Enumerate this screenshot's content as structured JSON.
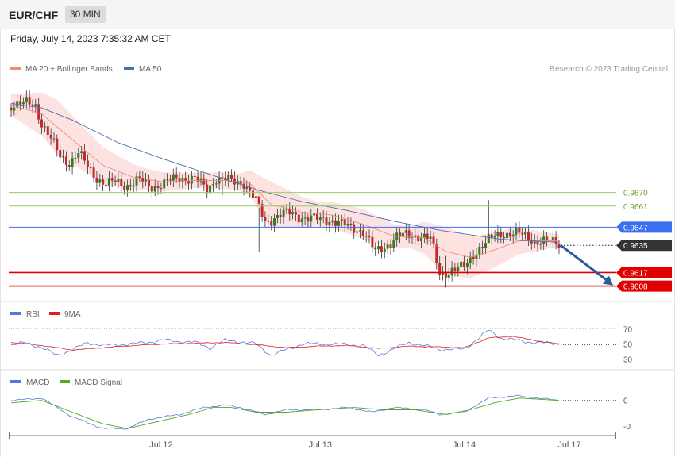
{
  "header": {
    "pair": "EUR/CHF",
    "timeframe": "30 MIN",
    "date": "Friday, July 14, 2023 7:35:32 AM CET"
  },
  "legend": {
    "ma20": "MA 20 + Bollinger Bands",
    "ma50": "MA 50",
    "credit": "Research © 2023 Trading Central"
  },
  "rsi_legend": {
    "rsi": "RSI",
    "ma": "9MA"
  },
  "macd_legend": {
    "macd": "MACD",
    "signal": "MACD Signal"
  },
  "colors": {
    "bullish": "#2e7d1f",
    "bearish": "#c62828",
    "ma20": "#f08a80",
    "ma50": "#4a6fb0",
    "band": "#fde2e2",
    "support": "#e00000",
    "pivot": "#3b6ff2",
    "resistance": "#9ccc65",
    "rsi": "#5577dd",
    "rsi_ma": "#e02020",
    "macd": "#5577dd",
    "macd_signal": "#55aa22",
    "forecast_arrow": "#2d5a9e"
  },
  "chart_data": [
    {
      "type": "candlestick",
      "title": "EUR/CHF 30 MIN",
      "x_ticks": [
        "Jul 12",
        "Jul 13",
        "Jul 14",
        "Jul 17"
      ],
      "ylim": [
        0.9602,
        0.9745
      ],
      "levels": [
        {
          "label": "0.9670",
          "value": 0.967,
          "kind": "resistance"
        },
        {
          "label": "0.9661",
          "value": 0.9661,
          "kind": "resistance"
        },
        {
          "label": "0.9647",
          "value": 0.9647,
          "kind": "pivot"
        },
        {
          "label": "0.9635",
          "value": 0.9635,
          "kind": "current"
        },
        {
          "label": "0.9617",
          "value": 0.9617,
          "kind": "support"
        },
        {
          "label": "0.9608",
          "value": 0.9608,
          "kind": "support"
        }
      ],
      "close_anchors": [
        [
          0,
          0.9728
        ],
        [
          5,
          0.9729
        ],
        [
          8,
          0.9728
        ],
        [
          10,
          0.9716
        ],
        [
          13,
          0.9705
        ],
        [
          16,
          0.9694
        ],
        [
          19,
          0.969
        ],
        [
          22,
          0.9696
        ],
        [
          25,
          0.9687
        ],
        [
          28,
          0.968
        ],
        [
          31,
          0.9675
        ],
        [
          34,
          0.9677
        ],
        [
          38,
          0.9675
        ],
        [
          42,
          0.9678
        ],
        [
          46,
          0.9674
        ],
        [
          50,
          0.9676
        ],
        [
          55,
          0.968
        ],
        [
          60,
          0.9679
        ],
        [
          64,
          0.9672
        ],
        [
          67,
          0.968
        ],
        [
          72,
          0.9677
        ],
        [
          76,
          0.9677
        ],
        [
          80,
          0.9664
        ],
        [
          83,
          0.965
        ],
        [
          87,
          0.9655
        ],
        [
          91,
          0.9656
        ],
        [
          95,
          0.9654
        ],
        [
          100,
          0.9652
        ],
        [
          105,
          0.9652
        ],
        [
          110,
          0.9647
        ],
        [
          115,
          0.9645
        ],
        [
          119,
          0.963
        ],
        [
          122,
          0.9634
        ],
        [
          126,
          0.9641
        ],
        [
          130,
          0.9641
        ],
        [
          134,
          0.9642
        ],
        [
          137,
          0.9639
        ],
        [
          140,
          0.9616
        ],
        [
          144,
          0.9619
        ],
        [
          148,
          0.962
        ],
        [
          152,
          0.9632
        ],
        [
          156,
          0.9638
        ],
        [
          160,
          0.9643
        ],
        [
          164,
          0.9643
        ],
        [
          168,
          0.9641
        ],
        [
          172,
          0.9638
        ],
        [
          176,
          0.9637
        ],
        [
          179,
          0.9636
        ]
      ],
      "wicks": [
        {
          "index": 69,
          "high": 0.9683,
          "low": 0.9668
        },
        {
          "index": 79,
          "high": 0.9675,
          "low": 0.9657
        },
        {
          "index": 81,
          "high": 0.966,
          "low": 0.9631
        },
        {
          "index": 142,
          "high": 0.9628,
          "low": 0.9607
        },
        {
          "index": 156,
          "high": 0.9665,
          "low": 0.9637
        }
      ],
      "ma20_anchors": [
        [
          0,
          0.9728
        ],
        [
          10,
          0.9722
        ],
        [
          20,
          0.9705
        ],
        [
          30,
          0.9688
        ],
        [
          40,
          0.968
        ],
        [
          50,
          0.9677
        ],
        [
          60,
          0.9678
        ],
        [
          70,
          0.9678
        ],
        [
          78,
          0.9676
        ],
        [
          85,
          0.9662
        ],
        [
          95,
          0.9657
        ],
        [
          105,
          0.9655
        ],
        [
          115,
          0.9649
        ],
        [
          125,
          0.9641
        ],
        [
          135,
          0.964
        ],
        [
          142,
          0.9631
        ],
        [
          150,
          0.9627
        ],
        [
          158,
          0.9632
        ],
        [
          166,
          0.9638
        ],
        [
          179,
          0.9638
        ]
      ],
      "ma50_anchors": [
        [
          0,
          0.9729
        ],
        [
          10,
          0.9726
        ],
        [
          20,
          0.9718
        ],
        [
          35,
          0.9703
        ],
        [
          50,
          0.9692
        ],
        [
          65,
          0.9682
        ],
        [
          80,
          0.9672
        ],
        [
          95,
          0.9664
        ],
        [
          110,
          0.9658
        ],
        [
          125,
          0.9651
        ],
        [
          140,
          0.9645
        ],
        [
          150,
          0.9642
        ],
        [
          160,
          0.9639
        ],
        [
          170,
          0.9638
        ],
        [
          179,
          0.9637
        ]
      ],
      "band_half_width_anchors": [
        [
          0,
          0.0007
        ],
        [
          15,
          0.0018
        ],
        [
          30,
          0.0012
        ],
        [
          45,
          0.0007
        ],
        [
          60,
          0.0005
        ],
        [
          75,
          0.0006
        ],
        [
          85,
          0.0015
        ],
        [
          100,
          0.0008
        ],
        [
          115,
          0.001
        ],
        [
          130,
          0.0007
        ],
        [
          142,
          0.0016
        ],
        [
          160,
          0.0011
        ],
        [
          179,
          0.0004
        ]
      ]
    },
    {
      "type": "line",
      "title": "RSI",
      "ylim": [
        20,
        80
      ],
      "reference_levels": [
        70,
        50,
        30
      ],
      "series": [
        {
          "name": "RSI",
          "anchors": [
            [
              0,
              48
            ],
            [
              5,
              52
            ],
            [
              10,
              45
            ],
            [
              15,
              35
            ],
            [
              20,
              42
            ],
            [
              25,
              52
            ],
            [
              30,
              48
            ],
            [
              40,
              50
            ],
            [
              50,
              55
            ],
            [
              60,
              52
            ],
            [
              65,
              45
            ],
            [
              70,
              55
            ],
            [
              75,
              53
            ],
            [
              80,
              50
            ],
            [
              85,
              35
            ],
            [
              95,
              50
            ],
            [
              105,
              50
            ],
            [
              115,
              48
            ],
            [
              120,
              35
            ],
            [
              130,
              52
            ],
            [
              140,
              43
            ],
            [
              148,
              43
            ],
            [
              156,
              68
            ],
            [
              160,
              58
            ],
            [
              168,
              53
            ],
            [
              179,
              50
            ]
          ]
        },
        {
          "name": "9MA",
          "anchors": [
            [
              0,
              52
            ],
            [
              10,
              48
            ],
            [
              20,
              42
            ],
            [
              30,
              45
            ],
            [
              40,
              48
            ],
            [
              50,
              50
            ],
            [
              60,
              51
            ],
            [
              70,
              52
            ],
            [
              80,
              49
            ],
            [
              90,
              45
            ],
            [
              100,
              47
            ],
            [
              110,
              48
            ],
            [
              120,
              44
            ],
            [
              130,
              47
            ],
            [
              140,
              46
            ],
            [
              148,
              45
            ],
            [
              156,
              58
            ],
            [
              164,
              60
            ],
            [
              172,
              54
            ],
            [
              179,
              50
            ]
          ]
        }
      ]
    },
    {
      "type": "line",
      "title": "MACD",
      "y_ticks": [
        "0",
        "-0"
      ],
      "ylim": [
        -0.0014,
        0.0005
      ],
      "series": [
        {
          "name": "MACD",
          "anchors": [
            [
              0,
              0.0
            ],
            [
              10,
              0.0001
            ],
            [
              15,
              -0.0003
            ],
            [
              20,
              -0.0007
            ],
            [
              30,
              -0.0012
            ],
            [
              38,
              -0.0012
            ],
            [
              45,
              -0.0008
            ],
            [
              55,
              -0.0006
            ],
            [
              63,
              -0.0003
            ],
            [
              70,
              -0.0002
            ],
            [
              75,
              -0.0003
            ],
            [
              83,
              -0.0006
            ],
            [
              90,
              -0.0004
            ],
            [
              100,
              -0.0004
            ],
            [
              110,
              -0.0003
            ],
            [
              118,
              -0.0005
            ],
            [
              125,
              -0.0003
            ],
            [
              135,
              -0.0004
            ],
            [
              140,
              -0.0006
            ],
            [
              148,
              -0.0005
            ],
            [
              156,
              0.0001
            ],
            [
              165,
              0.0002
            ],
            [
              179,
              0.0
            ]
          ]
        },
        {
          "name": "MACD Signal",
          "anchors": [
            [
              0,
              -0.0001
            ],
            [
              10,
              0.0
            ],
            [
              20,
              -0.0005
            ],
            [
              30,
              -0.001
            ],
            [
              38,
              -0.0012
            ],
            [
              48,
              -0.0009
            ],
            [
              58,
              -0.0006
            ],
            [
              66,
              -0.0003
            ],
            [
              72,
              -0.0003
            ],
            [
              80,
              -0.0005
            ],
            [
              90,
              -0.0005
            ],
            [
              100,
              -0.0004
            ],
            [
              112,
              -0.0003
            ],
            [
              122,
              -0.0004
            ],
            [
              132,
              -0.0004
            ],
            [
              142,
              -0.0006
            ],
            [
              150,
              -0.0004
            ],
            [
              158,
              -0.0001
            ],
            [
              166,
              0.0001
            ],
            [
              179,
              0.0
            ]
          ]
        }
      ]
    }
  ]
}
